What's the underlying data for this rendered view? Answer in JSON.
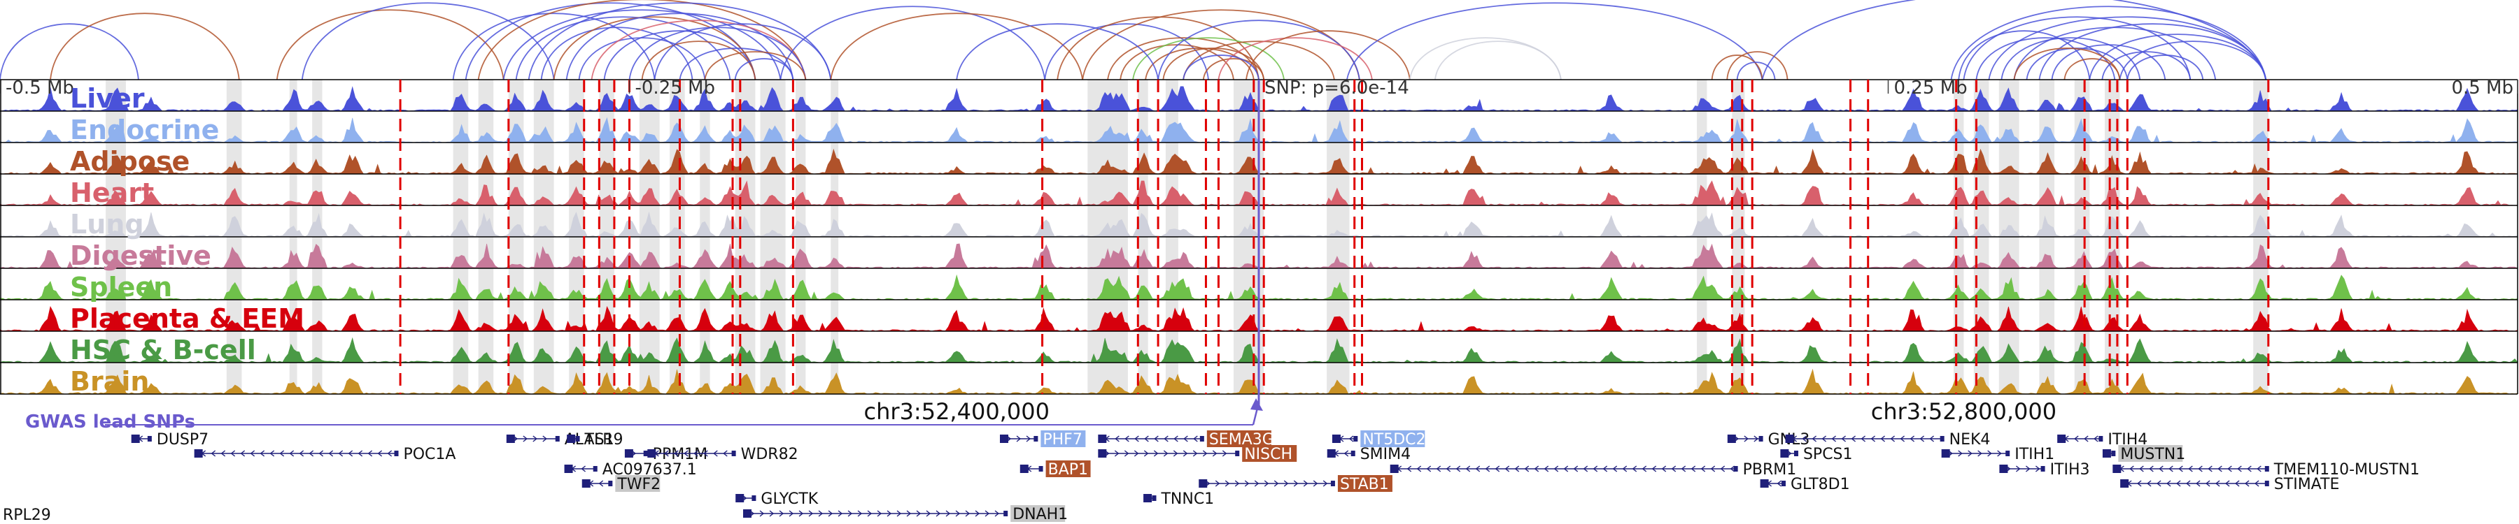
{
  "colors": {
    "Liver": "#4a52d9",
    "Endocrine": "#8fb1ee",
    "Adipose": "#b0522a",
    "Heart": "#d8606c",
    "Lung": "#cfd1dc",
    "Digestive": "#c77a9a",
    "Spleen": "#6fc14a",
    "Placenta & EEM": "#d6000d",
    "HSC & B-cell": "#4a9a45",
    "Brain": "#c99226",
    "gwas": "#6a5acd",
    "gene_default": "#1f1f7a",
    "gene_hl_Liver": "#4a52d9",
    "gene_hl_Adipose": "#b0522a",
    "gene_hl_Lung": "#cfd1dc",
    "gene_hl_Endocrine": "#8fb1ee",
    "snp_line": "#e00000"
  },
  "axis_ticks": [
    {
      "label": "-0.5 Mb",
      "pos": 0.0
    },
    {
      "label": "-0.25 Mb",
      "pos": 0.25
    },
    {
      "label": "0.25 Mb",
      "pos": 0.75
    },
    {
      "label": "0.5 Mb",
      "pos": 1.0
    }
  ],
  "snp_label": "SNP: p=6.0e-14",
  "coord_labels": [
    {
      "label": "chr3:52,400,000",
      "pos": 0.38
    },
    {
      "label": "chr3:52,800,000",
      "pos": 0.78
    }
  ],
  "gwas_label": "GWAS lead SNPs",
  "tracks": [
    "Liver",
    "Endocrine",
    "Adipose",
    "Heart",
    "Lung",
    "Digestive",
    "Spleen",
    "Placenta & EEM",
    "HSC & B-cell",
    "Brain"
  ],
  "genes": [
    {
      "name": "DUSP7",
      "s": 0.053,
      "e": 0.06,
      "row": 0,
      "strand": "-",
      "hl": ""
    },
    {
      "name": "POC1A",
      "s": 0.078,
      "e": 0.158,
      "row": 1,
      "strand": "-",
      "hl": ""
    },
    {
      "name": "ALAS1",
      "s": 0.202,
      "e": 0.222,
      "row": 0,
      "strand": "+",
      "hl": ""
    },
    {
      "name": "TLR9",
      "s": 0.226,
      "e": 0.23,
      "row": 0,
      "strand": "-",
      "hl": ""
    },
    {
      "name": "PPM1M",
      "s": 0.249,
      "e": 0.257,
      "row": 1,
      "strand": "+",
      "hl": ""
    },
    {
      "name": "WDR82",
      "s": 0.258,
      "e": 0.292,
      "row": 1,
      "strand": "-",
      "hl": ""
    },
    {
      "name": "AC097637.1",
      "s": 0.225,
      "e": 0.237,
      "row": 2,
      "strand": "-",
      "hl": ""
    },
    {
      "name": "TWF2",
      "s": 0.232,
      "e": 0.243,
      "row": 3,
      "strand": "-",
      "hl": "gray"
    },
    {
      "name": "GLYCTK",
      "s": 0.293,
      "e": 0.3,
      "row": 4,
      "strand": "+",
      "hl": ""
    },
    {
      "name": "DNAH1",
      "s": 0.296,
      "e": 0.4,
      "row": 5,
      "strand": "+",
      "hl": "gray"
    },
    {
      "name": "PHF7",
      "s": 0.398,
      "e": 0.412,
      "row": 0,
      "strand": "+",
      "hl": "Endocrine"
    },
    {
      "name": "SEMA3G",
      "s": 0.437,
      "e": 0.478,
      "row": 0,
      "strand": "-",
      "hl": "Adipose"
    },
    {
      "name": "NISCH",
      "s": 0.437,
      "e": 0.492,
      "row": 1,
      "strand": "+",
      "hl": "Adipose"
    },
    {
      "name": "BAP1",
      "s": 0.406,
      "e": 0.414,
      "row": 2,
      "strand": "-",
      "hl": "Adipose"
    },
    {
      "name": "STAB1",
      "s": 0.477,
      "e": 0.53,
      "row": 3,
      "strand": "+",
      "hl": "Adipose"
    },
    {
      "name": "TNNC1",
      "s": 0.455,
      "e": 0.459,
      "row": 4,
      "strand": "-",
      "hl": ""
    },
    {
      "name": "NT5DC2",
      "s": 0.53,
      "e": 0.539,
      "row": 0,
      "strand": "-",
      "hl": "Endocrine"
    },
    {
      "name": "SMIM4",
      "s": 0.528,
      "e": 0.538,
      "row": 1,
      "strand": "-",
      "hl": ""
    },
    {
      "name": "GNL3",
      "s": 0.687,
      "e": 0.7,
      "row": 0,
      "strand": "+",
      "hl": ""
    },
    {
      "name": "NEK4",
      "s": 0.71,
      "e": 0.772,
      "row": 0,
      "strand": "-",
      "hl": ""
    },
    {
      "name": "SPCS1",
      "s": 0.708,
      "e": 0.714,
      "row": 1,
      "strand": "+",
      "hl": ""
    },
    {
      "name": "ITIH1",
      "s": 0.772,
      "e": 0.798,
      "row": 1,
      "strand": "+",
      "hl": ""
    },
    {
      "name": "PBRM1",
      "s": 0.553,
      "e": 0.69,
      "row": 2,
      "strand": "-",
      "hl": ""
    },
    {
      "name": "GLT8D1",
      "s": 0.7,
      "e": 0.709,
      "row": 3,
      "strand": "-",
      "hl": ""
    },
    {
      "name": "ITIH3",
      "s": 0.795,
      "e": 0.812,
      "row": 2,
      "strand": "+",
      "hl": ""
    },
    {
      "name": "ITIH4",
      "s": 0.818,
      "e": 0.835,
      "row": 0,
      "strand": "-",
      "hl": ""
    },
    {
      "name": "MUSTN1",
      "s": 0.836,
      "e": 0.84,
      "row": 1,
      "strand": "+",
      "hl": "gray"
    },
    {
      "name": "TMEM110-MUSTN1",
      "s": 0.84,
      "e": 0.901,
      "row": 2,
      "strand": "-",
      "hl": ""
    },
    {
      "name": "STIMATE",
      "s": 0.843,
      "e": 0.901,
      "row": 3,
      "strand": "-",
      "hl": ""
    }
  ],
  "edge_gene_label": "RPL29"
}
